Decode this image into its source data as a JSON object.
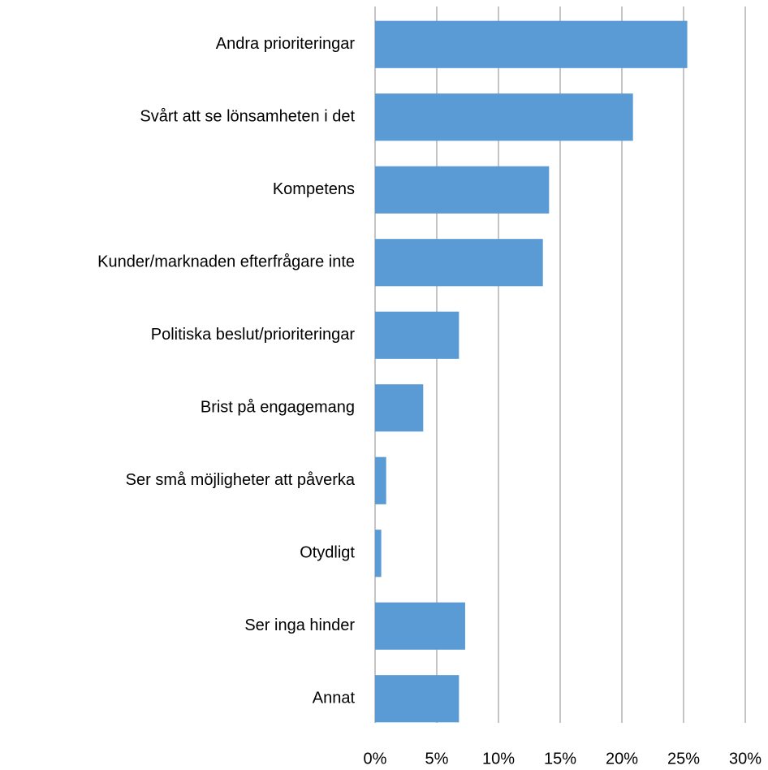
{
  "chart_data": {
    "type": "barh",
    "categories": [
      "Andra prioriteringar",
      "Svårt att se lönsamheten i det",
      "Kompetens",
      "Kunder/marknaden efterfrågare inte",
      "Politiska beslut/prioriteringar",
      "Brist på engagemang",
      "Ser små möjligheter att påverka",
      "Otydligt",
      "Ser inga hinder",
      "Annat"
    ],
    "values": [
      25.3,
      20.9,
      14.1,
      13.6,
      6.8,
      3.9,
      0.9,
      0.5,
      7.3,
      6.8
    ],
    "color": "#5b9bd5",
    "xlim": [
      0,
      30
    ],
    "xticks": [
      {
        "value": 0,
        "label": "0%"
      },
      {
        "value": 5,
        "label": "5%"
      },
      {
        "value": 10,
        "label": "10%"
      },
      {
        "value": 15,
        "label": "15%"
      },
      {
        "value": 20,
        "label": "20%"
      },
      {
        "value": 25,
        "label": "25%"
      },
      {
        "value": 30,
        "label": "30%"
      }
    ],
    "grid": true
  }
}
